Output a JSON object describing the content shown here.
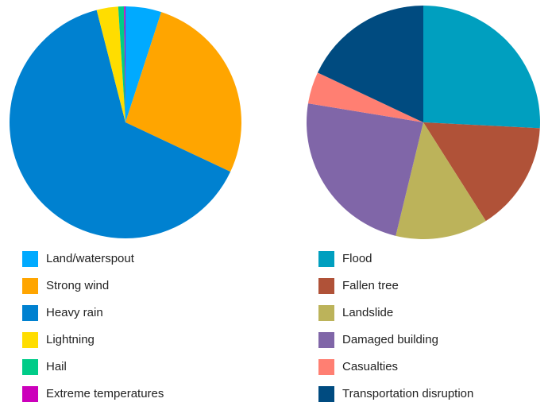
{
  "chart_data": [
    {
      "type": "pie",
      "categories": [
        "Land/waterspout",
        "Strong wind",
        "Heavy rain",
        "Lightning",
        "Hail",
        "Extreme temperatures"
      ],
      "values": [
        5,
        27,
        64,
        3,
        0.8,
        0.2
      ],
      "colors": [
        "#00aaff",
        "#ffa500",
        "#0081d0",
        "#ffdd00",
        "#00cc88",
        "#cc00bb"
      ]
    },
    {
      "type": "pie",
      "categories": [
        "Flood",
        "Fallen tree",
        "Landslide",
        "Damaged building",
        "Casualties",
        "Transportation disruption"
      ],
      "values": [
        25.8,
        15.2,
        12.8,
        23.8,
        4.4,
        18
      ],
      "colors": [
        "#009fbf",
        "#b05238",
        "#bcb35a",
        "#8066a8",
        "#ff7f72",
        "#004b80"
      ]
    }
  ]
}
